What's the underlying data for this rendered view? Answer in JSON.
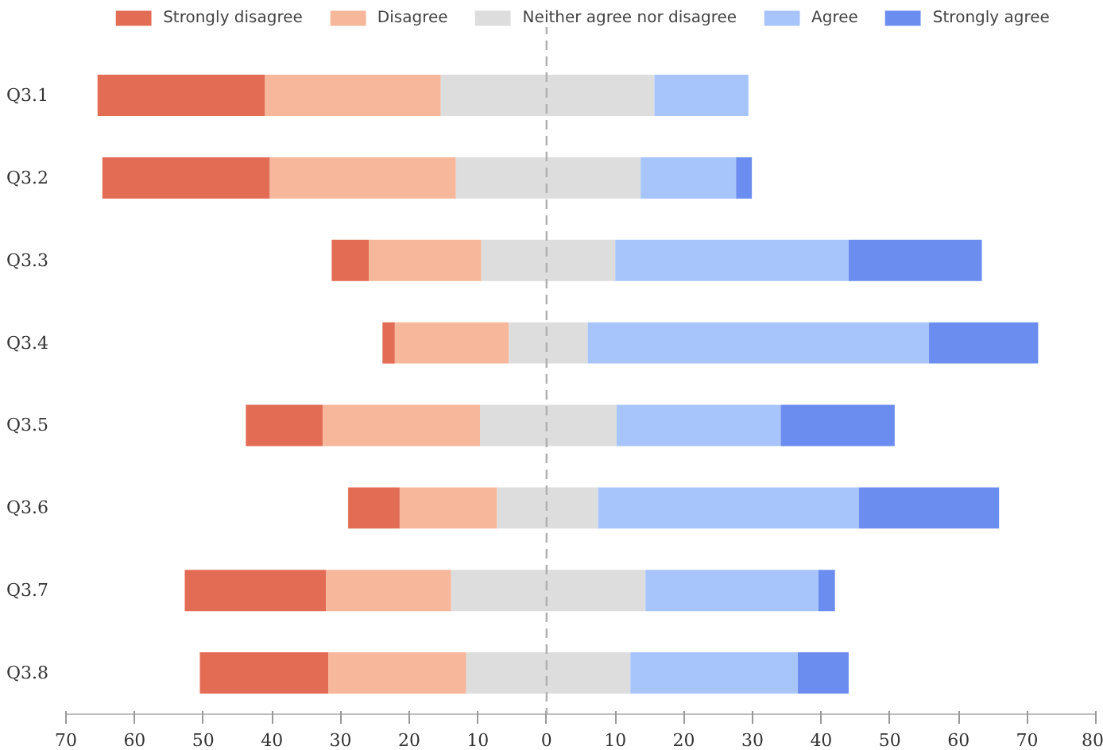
{
  "chart_data": {
    "type": "bar",
    "orientation": "horizontal",
    "categories": [
      "Q3.1",
      "Q3.2",
      "Q3.3",
      "Q3.4",
      "Q3.5",
      "Q3.6",
      "Q3.7",
      "Q3.8"
    ],
    "series": [
      {
        "name": "Strongly disagree",
        "color": "#e36c55",
        "base": [
          -65.4,
          -64.7,
          -31.3,
          -23.9,
          -43.8,
          -28.9,
          -52.7,
          -50.5
        ],
        "values": [
          24.4,
          24.4,
          5.4,
          1.8,
          11.2,
          7.5,
          20.6,
          18.7
        ]
      },
      {
        "name": "Disagree",
        "color": "#f6b79a",
        "base": [
          -41.0,
          -40.3,
          -25.9,
          -22.1,
          -32.6,
          -21.4,
          -32.1,
          -31.8
        ],
        "values": [
          25.6,
          27.1,
          16.4,
          16.6,
          22.9,
          14.2,
          18.2,
          20.1
        ]
      },
      {
        "name": "Neither agree nor disagree",
        "color": "#dcdddc",
        "base": [
          -15.4,
          -13.2,
          -9.5,
          -5.5,
          -9.7,
          -7.2,
          -13.9,
          -11.7
        ],
        "values": [
          31.1,
          26.9,
          19.5,
          11.5,
          19.9,
          14.7,
          28.3,
          23.9
        ]
      },
      {
        "name": "Agree",
        "color": "#a7c5fb",
        "base": [
          15.7,
          13.7,
          10.0,
          6.0,
          10.2,
          7.5,
          14.4,
          12.2
        ],
        "values": [
          13.7,
          13.9,
          34.0,
          49.7,
          23.9,
          38.0,
          25.2,
          24.4
        ]
      },
      {
        "name": "Strongly agree",
        "color": "#6b8def",
        "base": [
          null,
          27.6,
          44.0,
          55.7,
          34.1,
          45.5,
          39.6,
          36.6
        ],
        "values": [
          null,
          2.3,
          19.4,
          15.9,
          16.6,
          20.4,
          2.4,
          7.4
        ]
      }
    ],
    "xlim": [
      -70,
      80
    ],
    "xticks": [
      {
        "value": -70,
        "label": "70"
      },
      {
        "value": -60,
        "label": "60"
      },
      {
        "value": -50,
        "label": "50"
      },
      {
        "value": -40,
        "label": "40"
      },
      {
        "value": -30,
        "label": "30"
      },
      {
        "value": -20,
        "label": "20"
      },
      {
        "value": -10,
        "label": "10"
      },
      0,
      10,
      20,
      30,
      40,
      50,
      60,
      70,
      80
    ],
    "ref_lines": [
      {
        "axis": "x",
        "value": 0,
        "color": "#b0b0b0",
        "line_style": "dashed"
      }
    ],
    "grid": false,
    "legend": "top"
  }
}
